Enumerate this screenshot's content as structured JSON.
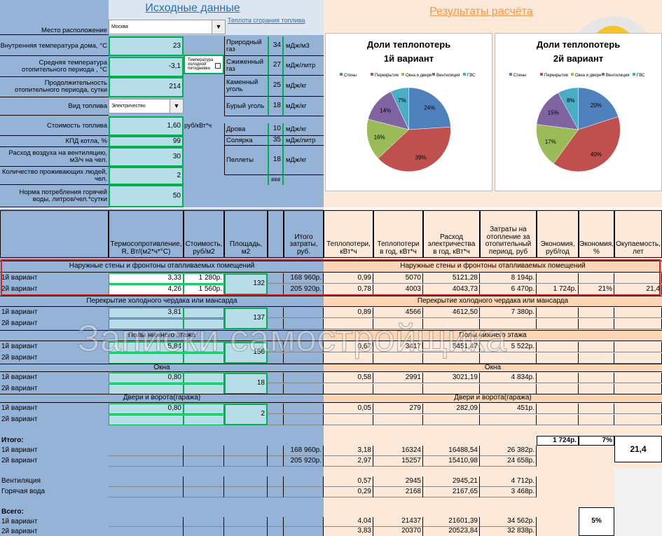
{
  "left_title": "Исходные данные",
  "link": "Теплота сгорания топлива",
  "right_title": "Результаты расчёта",
  "inputs": [
    {
      "label": "Место расположение",
      "value": "Москва"
    },
    {
      "label": "Внутренняя температура дома, °С",
      "value": "23"
    },
    {
      "label": "Средняя температура отопительного периода , °С",
      "value": "-3,1"
    },
    {
      "label": "Продолжительность отопительного периода, сутки",
      "value": "214"
    },
    {
      "label": "Вид топлива",
      "value": "Электричество"
    },
    {
      "label": "Стоимость топлива",
      "value": "1,60",
      "unit": "руб/кВт*ч"
    },
    {
      "label": "КПД котла, %",
      "value": "99"
    },
    {
      "label": "Расход воздуха на вентиляцию, м3/ч на чел.",
      "value": "30"
    },
    {
      "label": "Количество проживающих людей, чел.",
      "value": "2"
    },
    {
      "label": "Норма потребления горячей воды, литров/чел.*сутки",
      "value": "50"
    }
  ],
  "checkbox_label": "Температура холодной пятидневки",
  "fuels": [
    {
      "name": "Природный газ",
      "value": "34",
      "unit": "мДж/м3"
    },
    {
      "name": "Сжиженный газ",
      "value": "27",
      "unit": "мДж/литр"
    },
    {
      "name": "Каменный уголь",
      "value": "25",
      "unit": "мДж/кг"
    },
    {
      "name": "Бурый уголь",
      "value": "18",
      "unit": "мДж/кг"
    },
    {
      "name": "Дрова",
      "value": "10",
      "unit": "мДж/кг"
    },
    {
      "name": "Солярка",
      "value": "35",
      "unit": "мДж/литр"
    },
    {
      "name": "Пеллеты",
      "value": "18",
      "unit": "мДж/кг"
    }
  ],
  "fuel_overflow": "###",
  "chart_data": [
    {
      "type": "pie",
      "title": "Доли теплопотерь",
      "subtitle": "1й вариант",
      "categories": [
        "Стены",
        "Перекрытие",
        "Окна и двери",
        "Вентиляция",
        "ГВС"
      ],
      "values": [
        24,
        39,
        16,
        14,
        7
      ],
      "value_labels": [
        "24%",
        "39%",
        "16%",
        "14%",
        "7%"
      ],
      "colors": [
        "#4f81bd",
        "#c0504d",
        "#9bbb59",
        "#8064a2",
        "#4bacc6"
      ]
    },
    {
      "type": "pie",
      "title": "Доли теплопотерь",
      "subtitle": "2й вариант",
      "categories": [
        "Стены",
        "Перекрытие",
        "Окна и двери",
        "Вентиляция",
        "ГВС"
      ],
      "values": [
        20,
        40,
        17,
        15,
        8
      ],
      "value_labels": [
        "20%",
        "40%",
        "17%",
        "15%",
        "8%"
      ],
      "colors": [
        "#4f81bd",
        "#c0504d",
        "#9bbb59",
        "#8064a2",
        "#4bacc6"
      ]
    }
  ],
  "table": {
    "headers": {
      "r": "Термосопротивление, R, Вт/(м2*ч*°С)",
      "cost": "Стоимость, руб/м2",
      "area": "Площадь, м2",
      "total": "Итого затраты, руб.",
      "loss": "Теплопотери, кВт*ч",
      "year": "Теплопотери в год, кВт*ч",
      "elec": "Расход электричества в год, кВт*ч",
      "spend": "Затраты на отопление за отопительный период, руб",
      "save": "Экономия, руб/год",
      "pct": "Экономия, %",
      "payback": "Окупаемость, лет"
    },
    "sections": [
      {
        "name": "Наружные стены и фронтоны отапливаемых помещений",
        "area": "132",
        "rows": [
          {
            "label": "1й вариант",
            "r": "3,33",
            "cost": "1 280р.",
            "total": "168 960р.",
            "loss": "0,99",
            "year": "5070",
            "elec": "5121,28",
            "spend": "8 194р."
          },
          {
            "label": "2й вариант",
            "r": "4,26",
            "cost": "1 560р.",
            "total": "205 920р.",
            "loss": "0,78",
            "year": "4003",
            "elec": "4043,73",
            "spend": "6 470р.",
            "save": "1 724р.",
            "pct": "21%",
            "payback": "21,4"
          }
        ]
      },
      {
        "name": "Перекрытие холодного чердака или мансарда",
        "area": "137",
        "rows": [
          {
            "label": "1й вариант",
            "r": "3,81",
            "loss": "0,89",
            "year": "4566",
            "elec": "4612,50",
            "spend": "7 380р."
          },
          {
            "label": "2й вариант"
          }
        ]
      },
      {
        "name": "Полы нижнего этажа",
        "area": "156",
        "rows": [
          {
            "label": "1й вариант",
            "r": "5,84",
            "loss": "0,67",
            "year": "3417",
            "elec": "3451,47",
            "spend": "5 522р."
          },
          {
            "label": "2й вариант"
          }
        ]
      },
      {
        "name": "Окна",
        "area": "18",
        "rows": [
          {
            "label": "1й вариант",
            "r": "0,80",
            "loss": "0,58",
            "year": "2991",
            "elec": "3021,19",
            "spend": "4 834р."
          },
          {
            "label": "2й вариант"
          }
        ]
      },
      {
        "name": "Двери и ворота(гаража)",
        "area": "2",
        "rows": [
          {
            "label": "1й вариант",
            "r": "0,80",
            "loss": "0,05",
            "year": "279",
            "elec": "282,09",
            "spend": "451р."
          },
          {
            "label": "2й вариант"
          }
        ]
      }
    ],
    "totals": {
      "label": "Итого:",
      "save": "1 724р.",
      "pct": "7%",
      "payback": "21,4",
      "rows": [
        {
          "label": "1й вариант",
          "total": "168 960р.",
          "loss": "3,18",
          "year": "16324",
          "elec": "16488,54",
          "spend": "26 382р."
        },
        {
          "label": "2й вариант",
          "total": "205 920р.",
          "loss": "2,97",
          "year": "15257",
          "elec": "15410,98",
          "spend": "24 658р."
        }
      ]
    },
    "extras": [
      {
        "label": "Вентиляция",
        "loss": "0,57",
        "year": "2945",
        "elec": "2945,21",
        "spend": "4 712р."
      },
      {
        "label": "Горячая вода",
        "loss": "0,29",
        "year": "2168",
        "elec": "2167,65",
        "spend": "3 468р."
      }
    ],
    "grand": {
      "label": "Всего:",
      "pct": "5%",
      "rows": [
        {
          "label": "1й вариант",
          "loss": "4,04",
          "year": "21437",
          "elec": "21601,39",
          "spend": "34 562р."
        },
        {
          "label": "2й вариант",
          "loss": "3,83",
          "year": "20370",
          "elec": "20523,84",
          "spend": "32 838р."
        }
      ]
    }
  },
  "watermark": "Записки самостройщика"
}
